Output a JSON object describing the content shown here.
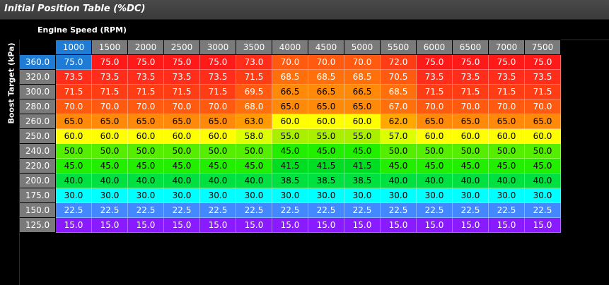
{
  "window": {
    "title": "Initial Position Table (%DC)"
  },
  "x_axis": {
    "label": "Engine Speed (RPM)",
    "values": [
      "1000",
      "1500",
      "2000",
      "2500",
      "3000",
      "3500",
      "4000",
      "4500",
      "5000",
      "5500",
      "6000",
      "6500",
      "7000",
      "7500"
    ]
  },
  "y_axis": {
    "label": "Boost Target (kPa)",
    "values": [
      "360.0",
      "320.0",
      "300.0",
      "280.0",
      "260.0",
      "250.0",
      "240.0",
      "220.0",
      "200.0",
      "175.0",
      "150.0",
      "125.0"
    ]
  },
  "rows": [
    [
      "75.0",
      "75.0",
      "75.0",
      "75.0",
      "75.0",
      "73.0",
      "70.0",
      "70.0",
      "70.0",
      "72.0",
      "75.0",
      "75.0",
      "75.0",
      "75.0"
    ],
    [
      "73.5",
      "73.5",
      "73.5",
      "73.5",
      "73.5",
      "71.5",
      "68.5",
      "68.5",
      "68.5",
      "70.5",
      "73.5",
      "73.5",
      "73.5",
      "73.5"
    ],
    [
      "71.5",
      "71.5",
      "71.5",
      "71.5",
      "71.5",
      "69.5",
      "66.5",
      "66.5",
      "66.5",
      "68.5",
      "71.5",
      "71.5",
      "71.5",
      "71.5"
    ],
    [
      "70.0",
      "70.0",
      "70.0",
      "70.0",
      "70.0",
      "68.0",
      "65.0",
      "65.0",
      "65.0",
      "67.0",
      "70.0",
      "70.0",
      "70.0",
      "70.0"
    ],
    [
      "65.0",
      "65.0",
      "65.0",
      "65.0",
      "65.0",
      "63.0",
      "60.0",
      "60.0",
      "60.0",
      "62.0",
      "65.0",
      "65.0",
      "65.0",
      "65.0"
    ],
    [
      "60.0",
      "60.0",
      "60.0",
      "60.0",
      "60.0",
      "58.0",
      "55.0",
      "55.0",
      "55.0",
      "57.0",
      "60.0",
      "60.0",
      "60.0",
      "60.0"
    ],
    [
      "50.0",
      "50.0",
      "50.0",
      "50.0",
      "50.0",
      "50.0",
      "45.0",
      "45.0",
      "45.0",
      "50.0",
      "50.0",
      "50.0",
      "50.0",
      "50.0"
    ],
    [
      "45.0",
      "45.0",
      "45.0",
      "45.0",
      "45.0",
      "45.0",
      "41.5",
      "41.5",
      "41.5",
      "45.0",
      "45.0",
      "45.0",
      "45.0",
      "45.0"
    ],
    [
      "40.0",
      "40.0",
      "40.0",
      "40.0",
      "40.0",
      "40.0",
      "38.5",
      "38.5",
      "38.5",
      "40.0",
      "40.0",
      "40.0",
      "40.0",
      "40.0"
    ],
    [
      "30.0",
      "30.0",
      "30.0",
      "30.0",
      "30.0",
      "30.0",
      "30.0",
      "30.0",
      "30.0",
      "30.0",
      "30.0",
      "30.0",
      "30.0",
      "30.0"
    ],
    [
      "22.5",
      "22.5",
      "22.5",
      "22.5",
      "22.5",
      "22.5",
      "22.5",
      "22.5",
      "22.5",
      "22.5",
      "22.5",
      "22.5",
      "22.5",
      "22.5"
    ],
    [
      "15.0",
      "15.0",
      "15.0",
      "15.0",
      "15.0",
      "15.0",
      "15.0",
      "15.0",
      "15.0",
      "15.0",
      "15.0",
      "15.0",
      "15.0",
      "15.0"
    ]
  ],
  "selected": {
    "row": 0,
    "col": 0
  },
  "colors": {
    "header": "#7a7a7a",
    "selected": "#1e7bd6",
    "scale": [
      {
        "min": 75,
        "color": "#ff1a1a"
      },
      {
        "min": 73,
        "color": "#ff2d1a"
      },
      {
        "min": 71,
        "color": "#ff3d14"
      },
      {
        "min": 69,
        "color": "#ff5a10"
      },
      {
        "min": 67,
        "color": "#ff700c"
      },
      {
        "min": 65,
        "color": "#ff8a0a"
      },
      {
        "min": 63,
        "color": "#ff9a00"
      },
      {
        "min": 62,
        "color": "#ffa800"
      },
      {
        "min": 60,
        "color": "#ffff00"
      },
      {
        "min": 57,
        "color": "#ddff00"
      },
      {
        "min": 55,
        "color": "#aaee00"
      },
      {
        "min": 50,
        "color": "#55ee00"
      },
      {
        "min": 45,
        "color": "#22ee00"
      },
      {
        "min": 41,
        "color": "#00dd22"
      },
      {
        "min": 38,
        "color": "#00e040"
      },
      {
        "min": 30,
        "color": "#00ffff"
      },
      {
        "min": 22,
        "color": "#4488ff"
      },
      {
        "min": 0,
        "color": "#8a1aff"
      }
    ]
  }
}
